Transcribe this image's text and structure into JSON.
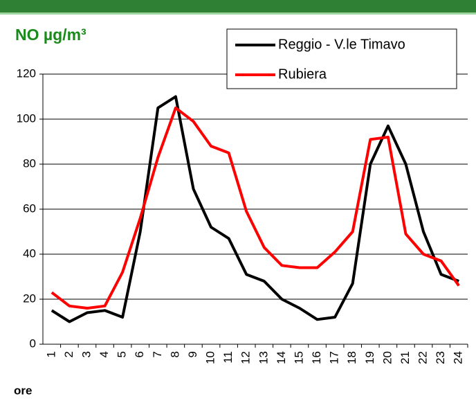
{
  "chart_data": {
    "type": "line",
    "title": "NO µg/m³",
    "x_label": "ore",
    "categories": [
      "1",
      "2",
      "3",
      "4",
      "5",
      "6",
      "7",
      "8",
      "9",
      "10",
      "11",
      "12",
      "13",
      "14",
      "15",
      "16",
      "17",
      "18",
      "19",
      "20",
      "21",
      "22",
      "23",
      "24"
    ],
    "series": [
      {
        "name": "Reggio - V.le Timavo",
        "color": "#000000",
        "values": [
          15,
          10,
          14,
          15,
          12,
          50,
          105,
          110,
          69,
          52,
          47,
          31,
          28,
          20,
          16,
          11,
          12,
          27,
          80,
          97,
          80,
          50,
          31,
          28
        ]
      },
      {
        "name": "Rubiera",
        "color": "#ff0000",
        "values": [
          23,
          17,
          16,
          17,
          32,
          56,
          83,
          105,
          99,
          88,
          85,
          59,
          43,
          35,
          34,
          34,
          41,
          50,
          91,
          92,
          49,
          40,
          37,
          26
        ]
      }
    ],
    "ylim": [
      0,
      120
    ],
    "yticks": [
      0,
      20,
      40,
      60,
      80,
      100,
      120
    ],
    "grid": true,
    "legend": "top-right"
  }
}
